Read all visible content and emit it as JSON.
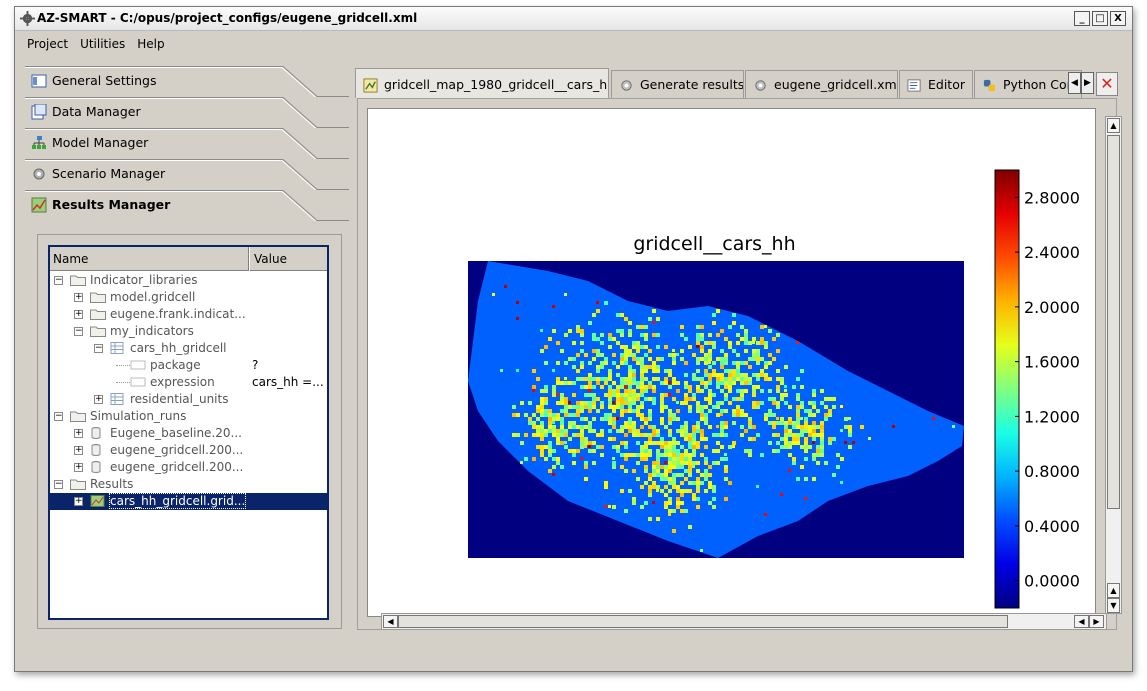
{
  "window": {
    "title": "AZ-SMART - C:/opus/project_configs/eugene_gridcell.xml",
    "controls": [
      "_",
      "□",
      "X"
    ]
  },
  "menu": [
    "Project",
    "Utilities",
    "Help"
  ],
  "sections": [
    {
      "label": "General Settings",
      "icon": "settings-sheet-icon"
    },
    {
      "label": "Data Manager",
      "icon": "data-sheet-icon"
    },
    {
      "label": "Model Manager",
      "icon": "model-tree-icon"
    },
    {
      "label": "Scenario Manager",
      "icon": "gear-icon"
    },
    {
      "label": "Results Manager",
      "icon": "results-map-icon",
      "active": true
    }
  ],
  "tree": {
    "headers": {
      "name": "Name",
      "value": "Value"
    },
    "rows": [
      {
        "label": "Indicator_libraries",
        "value": "",
        "expander": "−"
      },
      {
        "label": "model.gridcell",
        "value": "",
        "expander": "+"
      },
      {
        "label": "eugene.frank.indicat...",
        "value": "",
        "expander": "+"
      },
      {
        "label": "my_indicators",
        "value": "",
        "expander": "−"
      },
      {
        "label": "cars_hh_gridcell",
        "value": "",
        "expander": "−"
      },
      {
        "label": "package",
        "value": "?",
        "expander": ""
      },
      {
        "label": "expression",
        "value": "cars_hh =...",
        "expander": ""
      },
      {
        "label": "residential_units",
        "value": "",
        "expander": "+"
      },
      {
        "label": "Simulation_runs",
        "value": "",
        "expander": "−"
      },
      {
        "label": "Eugene_baseline.20...",
        "value": "",
        "expander": "+"
      },
      {
        "label": "eugene_gridcell.200...",
        "value": "",
        "expander": "+"
      },
      {
        "label": "eugene_gridcell.200...",
        "value": "",
        "expander": "+"
      },
      {
        "label": "Results",
        "value": "",
        "expander": "−"
      },
      {
        "label": "cars_hh_gridcell.grid...",
        "value": "",
        "expander": "+",
        "selected": true
      }
    ]
  },
  "tabs": [
    {
      "label": "gridcell_map_1980_gridcell__cars_hh",
      "icon": "map-icon",
      "active": true
    },
    {
      "label": "Generate results",
      "icon": "gear-icon"
    },
    {
      "label": "eugene_gridcell.xml",
      "icon": "gear-icon"
    },
    {
      "label": "Editor",
      "icon": "editor-icon"
    },
    {
      "label": "Python Con",
      "icon": "python-icon"
    }
  ],
  "plot": {
    "title": "gridcell__cars_hh",
    "colorbar_ticks": [
      "2.8000",
      "2.4000",
      "2.0000",
      "1.6000",
      "1.2000",
      "0.8000",
      "0.4000",
      "0.0000"
    ]
  },
  "chart_data": {
    "type": "heatmap",
    "title": "gridcell__cars_hh",
    "colormap": "jet",
    "colorbar_range": [
      -0.2,
      3.0
    ],
    "colorbar_ticks": [
      0.0,
      0.4,
      0.8,
      1.2,
      1.6,
      2.0,
      2.4,
      2.8
    ],
    "background_color": "#000080",
    "dominant_value_range": [
      0.8,
      1.6
    ]
  },
  "colors": {
    "selection": "#0a246a",
    "background": "#d4d0c8",
    "map_background": "#000080"
  }
}
